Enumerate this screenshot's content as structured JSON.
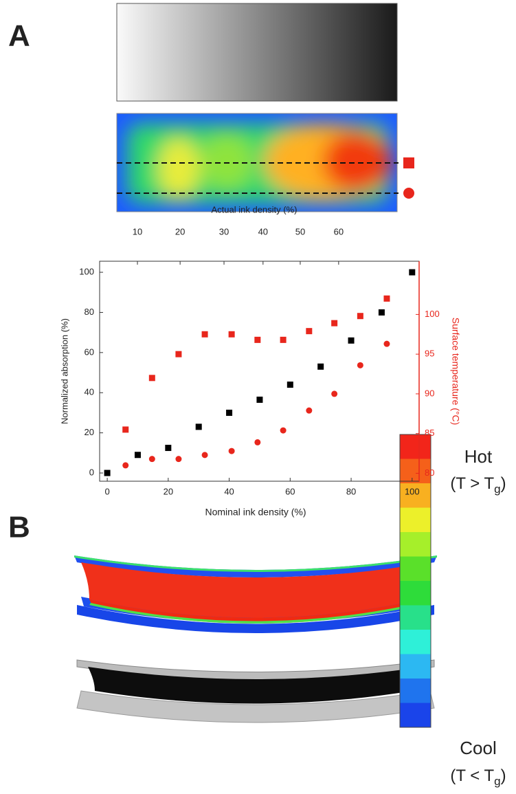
{
  "panels": [
    "A",
    "B"
  ],
  "chart_data": {
    "type": "scatter",
    "xlabel": "Nominal ink density   (%)",
    "x2label": "Actual ink density   (%)",
    "ylabel": "Normalized absorption   (%)",
    "y2label": "Surface temperature   (°C)",
    "xlim": [
      -2.5,
      102.3
    ],
    "xticks": [
      0,
      20,
      40,
      60,
      80,
      100
    ],
    "x2ticks": [
      {
        "value": 9.9,
        "label": "10"
      },
      {
        "value": 23.9,
        "label": "20"
      },
      {
        "value": 38.3,
        "label": "30"
      },
      {
        "value": 51.1,
        "label": "40"
      },
      {
        "value": 63.3,
        "label": "50"
      },
      {
        "value": 75.9,
        "label": "60"
      }
    ],
    "ylim": [
      -4.1,
      105.5
    ],
    "yticks": [
      0,
      20,
      40,
      60,
      80,
      100
    ],
    "y2lim": [
      79,
      106.7
    ],
    "y2ticks": [
      80,
      85,
      90,
      95,
      100
    ],
    "y2color": "#e8261c",
    "series": [
      {
        "color": "#000000",
        "marker": "square",
        "x": [
          0,
          10,
          20,
          30,
          40,
          50,
          60,
          70,
          80,
          90,
          100
        ],
        "values": [
          0,
          9,
          12.5,
          23,
          30,
          36.5,
          44,
          53,
          66,
          80,
          100
        ]
      },
      {
        "color": "#e8261c",
        "marker": "square",
        "axis": "y2",
        "x": [
          6,
          14.7,
          23.4,
          32,
          40.8,
          49.3,
          57.7,
          66.2,
          74.5,
          83,
          91.7
        ],
        "values": [
          85.5,
          92,
          95,
          97.5,
          97.5,
          96.8,
          96.8,
          97.9,
          98.9,
          99.8,
          102
        ]
      },
      {
        "color": "#e8261c",
        "marker": "circle",
        "axis": "y2",
        "x": [
          6,
          14.7,
          23.4,
          32,
          40.8,
          49.3,
          57.7,
          66.2,
          74.5,
          83,
          91.7
        ],
        "values": [
          81,
          81.8,
          81.8,
          82.3,
          82.8,
          83.9,
          85.4,
          87.9,
          90,
          93.6,
          96.3
        ]
      }
    ]
  },
  "colorbar": {
    "hot": "Hot",
    "hot_condition": [
      "(T > T",
      "g",
      ")"
    ],
    "cool": "Cool",
    "cool_condition": [
      "(T < T",
      "g",
      ")"
    ]
  }
}
